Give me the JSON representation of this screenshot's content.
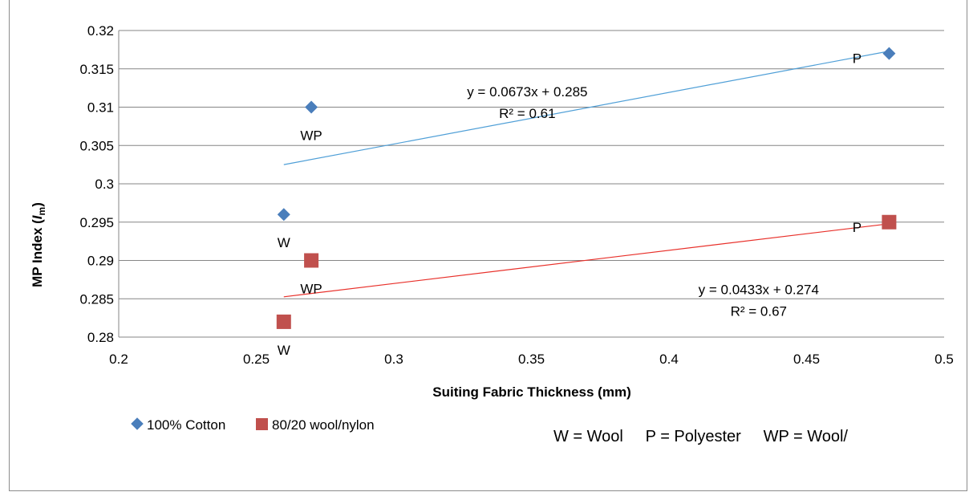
{
  "chart_data": {
    "type": "scatter",
    "title": "",
    "xlabel": "Suiting Fabric Thickness (mm)",
    "ylabel": "MP Index (",
    "ylabel_symbol": "I",
    "ylabel_subscript": "m",
    "ylabel_close": ")",
    "xlim": [
      0.2,
      0.5
    ],
    "ylim": [
      0.28,
      0.32
    ],
    "xticks": [
      0.2,
      0.25,
      0.3,
      0.35,
      0.4,
      0.45,
      0.5
    ],
    "xtick_labels": [
      "0.2",
      "0.25",
      "0.3",
      "0.35",
      "0.4",
      "0.45",
      "0.5"
    ],
    "yticks": [
      0.28,
      0.285,
      0.29,
      0.295,
      0.3,
      0.305,
      0.31,
      0.315,
      0.32
    ],
    "ytick_labels": [
      "0.28",
      "0.285",
      "0.29",
      "0.295",
      "0.3",
      "0.305",
      "0.31",
      "0.315",
      "0.32"
    ],
    "grid": "horizontal",
    "legend_position": "bottom-left",
    "series": [
      {
        "name": "100% Cotton",
        "marker": "diamond",
        "color": "#4a7ebb",
        "trend_color": "#4f9fd7",
        "points": [
          {
            "x": 0.26,
            "y": 0.296,
            "label": "W"
          },
          {
            "x": 0.27,
            "y": 0.31,
            "label": "WP"
          },
          {
            "x": 0.48,
            "y": 0.317,
            "label": "P"
          }
        ],
        "trendline": {
          "slope": 0.0673,
          "intercept": 0.285,
          "x_range": [
            0.26,
            0.48
          ],
          "equation": "y = 0.0673x + 0.285",
          "r2": "R² = 0.61"
        }
      },
      {
        "name": "80/20 wool/nylon",
        "marker": "square",
        "color": "#c0504d",
        "trend_color": "#e8302a",
        "points": [
          {
            "x": 0.26,
            "y": 0.282,
            "label": "W"
          },
          {
            "x": 0.27,
            "y": 0.29,
            "label": "WP"
          },
          {
            "x": 0.48,
            "y": 0.295,
            "label": "P"
          }
        ],
        "trendline": {
          "slope": 0.0433,
          "intercept": 0.274,
          "x_range": [
            0.26,
            0.48
          ],
          "equation": "y = 0.0433x + 0.274",
          "r2": "R² = 0.67"
        }
      }
    ],
    "annotation": "W = Wool     P = Polyester     WP = Wool/"
  }
}
